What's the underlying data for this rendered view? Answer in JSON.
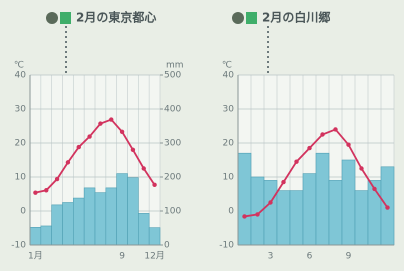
{
  "chart_data": [
    {
      "type": "combo",
      "title": "2月の東京都心",
      "y_label": "℃",
      "y2_label": "mm",
      "categories": [
        "1月",
        null,
        null,
        null,
        null,
        null,
        null,
        null,
        "9",
        null,
        null,
        "12月"
      ],
      "ylim": [
        -10,
        40
      ],
      "yticks": [
        -10,
        0,
        10,
        20,
        30,
        40
      ],
      "y2lim": [
        0,
        500
      ],
      "y2ticks": [
        0,
        100,
        200,
        300,
        400,
        500
      ],
      "grid": true,
      "series": [
        {
          "type": "bar",
          "axis": "y2",
          "color": "#7fc6d6",
          "values": [
            52,
            56,
            118,
            125,
            138,
            168,
            154,
            168,
            210,
            198,
            93,
            51
          ]
        },
        {
          "type": "line",
          "axis": "y",
          "color": "#d2335e",
          "values": [
            5.4,
            6.1,
            9.4,
            14.3,
            18.8,
            21.9,
            25.7,
            26.9,
            23.3,
            18.0,
            12.5,
            7.7
          ]
        }
      ]
    },
    {
      "type": "combo",
      "title": "2月の白川郷",
      "y_label": "℃",
      "categories": [
        null,
        null,
        "3",
        null,
        null,
        "6",
        null,
        null,
        "9",
        null,
        null,
        null
      ],
      "ylim": [
        -10,
        40
      ],
      "yticks": [
        -10,
        0,
        10,
        20,
        30,
        40
      ],
      "y2lim": [
        0,
        500
      ],
      "grid": true,
      "series": [
        {
          "type": "bar",
          "axis": "y2",
          "color": "#7fc6d6",
          "values": [
            270,
            200,
            190,
            160,
            160,
            210,
            270,
            190,
            250,
            160,
            190,
            230
          ]
        },
        {
          "type": "line",
          "axis": "y",
          "color": "#d2335e",
          "values": [
            -1.6,
            -1.0,
            2.5,
            8.5,
            14.5,
            18.5,
            22.5,
            24.0,
            19.5,
            12.5,
            6.5,
            1.0
          ]
        }
      ]
    }
  ]
}
